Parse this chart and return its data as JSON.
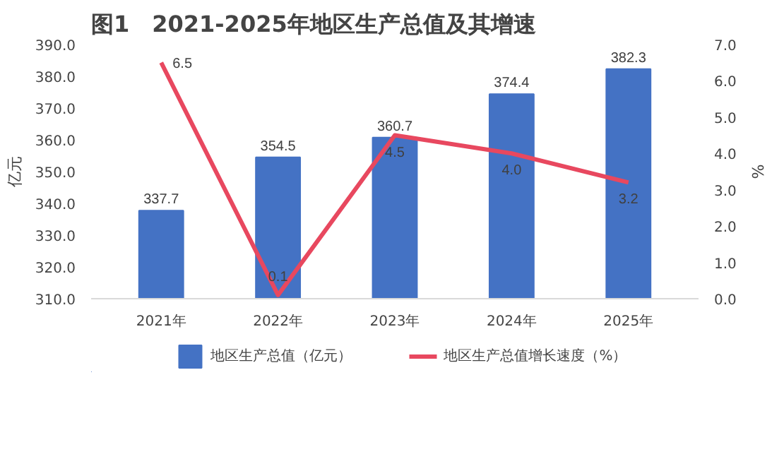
{
  "chart_data": {
    "type": "bar",
    "title": "图1　2021-2025年地区生产总值及其增速",
    "ylabel": "亿元",
    "y2label": "%",
    "categories": [
      "2021年",
      "2022年",
      "2023年",
      "2024年",
      "2025年"
    ],
    "series": [
      {
        "name": "地区生产总值（亿元）",
        "color": "#4472c4",
        "values": [
          337.7,
          354.5,
          360.7,
          374.4,
          382.3
        ]
      },
      {
        "name": "地区生产总值增长速度（%）",
        "type": "line",
        "axis": "y2",
        "color": "#e8485f",
        "values": [
          6.5,
          0.1,
          4.5,
          4.0,
          3.2
        ],
        "value_labels": [
          "6.5",
          "0.1",
          "4.5",
          "4.0",
          "3.2"
        ]
      }
    ],
    "ylim": [
      310,
      390
    ],
    "yticks": [
      {
        "value": 310,
        "label": "310.0"
      },
      {
        "value": 320,
        "label": "320.0"
      },
      {
        "value": 330,
        "label": "330.0"
      },
      {
        "value": 340,
        "label": "340.0"
      },
      {
        "value": 350,
        "label": "350.0"
      },
      {
        "value": 360,
        "label": "360.0"
      },
      {
        "value": 370,
        "label": "370.0"
      },
      {
        "value": 380,
        "label": "380.0"
      },
      {
        "value": 390,
        "label": "390.0"
      }
    ],
    "y2lim": [
      0,
      7
    ],
    "y2ticks": [
      {
        "value": 0,
        "label": "0.0"
      },
      {
        "value": 1,
        "label": "1.0"
      },
      {
        "value": 2,
        "label": "2.0"
      },
      {
        "value": 3,
        "label": "3.0"
      },
      {
        "value": 4,
        "label": "4.0"
      },
      {
        "value": 5,
        "label": "5.0"
      },
      {
        "value": 6,
        "label": "6.0"
      },
      {
        "value": 7,
        "label": "7.0"
      }
    ],
    "data_labels": true,
    "grid": false,
    "legend": "bottom",
    "marker": "none",
    "line_style": "solid"
  }
}
